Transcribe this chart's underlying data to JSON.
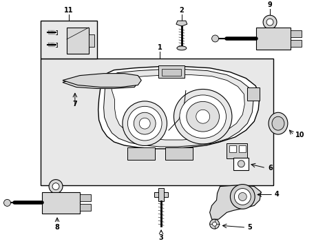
{
  "bg_color": "#ffffff",
  "box_fill": "#e8e8e8",
  "lc": "#000000",
  "lw": 0.8,
  "fig_w": 4.89,
  "fig_h": 3.6,
  "dpi": 100
}
